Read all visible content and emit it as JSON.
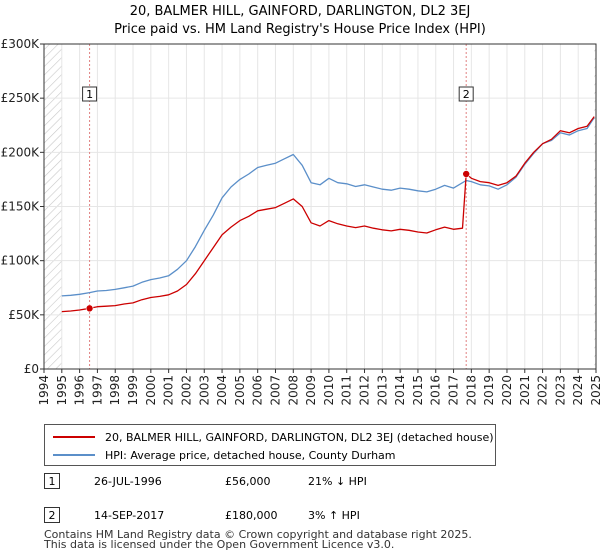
{
  "chart_data": {
    "type": "line",
    "title": "20, BALMER HILL, GAINFORD, DARLINGTON, DL2 3EJ",
    "subtitle": "Price paid vs. HM Land Registry's House Price Index (HPI)",
    "xlim": [
      1994,
      2025
    ],
    "ylim": [
      0,
      300000
    ],
    "x_ticks": [
      "1994",
      "1995",
      "1996",
      "1997",
      "1998",
      "1999",
      "2000",
      "2001",
      "2002",
      "2003",
      "2004",
      "2005",
      "2006",
      "2007",
      "2008",
      "2009",
      "2010",
      "2011",
      "2012",
      "2013",
      "2014",
      "2015",
      "2016",
      "2017",
      "2018",
      "2019",
      "2020",
      "2021",
      "2022",
      "2023",
      "2024",
      "2025"
    ],
    "y_ticks": [
      {
        "value": 0,
        "label": "£0"
      },
      {
        "value": 50000,
        "label": "£50K"
      },
      {
        "value": 100000,
        "label": "£100K"
      },
      {
        "value": 150000,
        "label": "£150K"
      },
      {
        "value": 200000,
        "label": "£200K"
      },
      {
        "value": 250000,
        "label": "£250K"
      },
      {
        "value": 300000,
        "label": "£300K"
      }
    ],
    "grid": true,
    "hatched_ranges": [
      [
        1994,
        1995.0
      ],
      [
        2024.9,
        2025
      ]
    ],
    "series": [
      {
        "name": "20, BALMER HILL, GAINFORD, DARLINGTON, DL2 3EJ (detached house)",
        "color": "#cc0000",
        "x": [
          1995.0,
          1995.5,
          1996.0,
          1996.56,
          1997.0,
          1997.5,
          1998.0,
          1998.5,
          1999.0,
          1999.5,
          2000.0,
          2000.5,
          2001.0,
          2001.5,
          2002.0,
          2002.5,
          2003.0,
          2003.5,
          2004.0,
          2004.5,
          2005.0,
          2005.5,
          2006.0,
          2006.5,
          2007.0,
          2007.5,
          2008.0,
          2008.5,
          2009.0,
          2009.5,
          2010.0,
          2010.5,
          2011.0,
          2011.5,
          2012.0,
          2012.5,
          2013.0,
          2013.5,
          2014.0,
          2014.5,
          2015.0,
          2015.5,
          2016.0,
          2016.5,
          2017.0,
          2017.5,
          2017.71,
          2018.0,
          2018.5,
          2019.0,
          2019.5,
          2020.0,
          2020.5,
          2021.0,
          2021.5,
          2022.0,
          2022.5,
          2023.0,
          2023.5,
          2024.0,
          2024.5,
          2024.9
        ],
        "values": [
          53000,
          53500,
          54500,
          56000,
          57500,
          58000,
          58500,
          60000,
          61000,
          64000,
          66000,
          67000,
          68500,
          72000,
          78000,
          88000,
          100000,
          112000,
          124000,
          131000,
          137000,
          141000,
          146000,
          147500,
          149000,
          153000,
          157000,
          150000,
          135000,
          132000,
          137000,
          134000,
          132000,
          130500,
          132000,
          130000,
          128500,
          127500,
          129000,
          128000,
          126500,
          125500,
          128500,
          131000,
          129000,
          130000,
          180000,
          176000,
          173000,
          172000,
          169500,
          172000,
          178000,
          190000,
          200000,
          208000,
          212000,
          220000,
          218000,
          222000,
          224000,
          233000
        ]
      },
      {
        "name": "HPI: Average price, detached house, County Durham",
        "color": "#5b8fc9",
        "x": [
          1995.0,
          1995.5,
          1996.0,
          1996.56,
          1997.0,
          1997.5,
          1998.0,
          1998.5,
          1999.0,
          1999.5,
          2000.0,
          2000.5,
          2001.0,
          2001.5,
          2002.0,
          2002.5,
          2003.0,
          2003.5,
          2004.0,
          2004.5,
          2005.0,
          2005.5,
          2006.0,
          2006.5,
          2007.0,
          2007.5,
          2008.0,
          2008.5,
          2009.0,
          2009.5,
          2010.0,
          2010.5,
          2011.0,
          2011.5,
          2012.0,
          2012.5,
          2013.0,
          2013.5,
          2014.0,
          2014.5,
          2015.0,
          2015.5,
          2016.0,
          2016.5,
          2017.0,
          2017.5,
          2017.71,
          2018.0,
          2018.5,
          2019.0,
          2019.5,
          2020.0,
          2020.5,
          2021.0,
          2021.5,
          2022.0,
          2022.5,
          2023.0,
          2023.5,
          2024.0,
          2024.5,
          2024.9
        ],
        "values": [
          67500,
          68000,
          69000,
          70500,
          72000,
          72500,
          73500,
          75000,
          76500,
          80000,
          82500,
          84000,
          86000,
          92000,
          100000,
          113000,
          128000,
          142000,
          158000,
          168000,
          175000,
          180000,
          186000,
          188000,
          190000,
          194000,
          198000,
          188000,
          172000,
          170000,
          176000,
          172000,
          171000,
          168500,
          170000,
          168000,
          166000,
          165000,
          167000,
          166000,
          164500,
          163500,
          166000,
          169500,
          167000,
          172000,
          174000,
          173000,
          170000,
          169000,
          166000,
          170000,
          177000,
          189000,
          199000,
          208000,
          211000,
          218000,
          216000,
          220000,
          222000,
          232000
        ]
      }
    ],
    "sale_markers": [
      {
        "id": "1",
        "x": 1996.56,
        "value": 56000
      },
      {
        "id": "2",
        "x": 2017.71,
        "value": 180000
      }
    ]
  },
  "legend": {
    "red_label": "20, BALMER HILL, GAINFORD, DARLINGTON, DL2 3EJ (detached house)",
    "blue_label": "HPI: Average price, detached house, County Durham"
  },
  "annotations": [
    {
      "id": "1",
      "date": "26-JUL-1996",
      "price": "£56,000",
      "hpi": "21% ↓ HPI"
    },
    {
      "id": "2",
      "date": "14-SEP-2017",
      "price": "£180,000",
      "hpi": "3% ↑ HPI"
    }
  ],
  "footer": {
    "line1": "Contains HM Land Registry data © Crown copyright and database right 2025.",
    "line2": "This data is licensed under the Open Government Licence v3.0."
  }
}
